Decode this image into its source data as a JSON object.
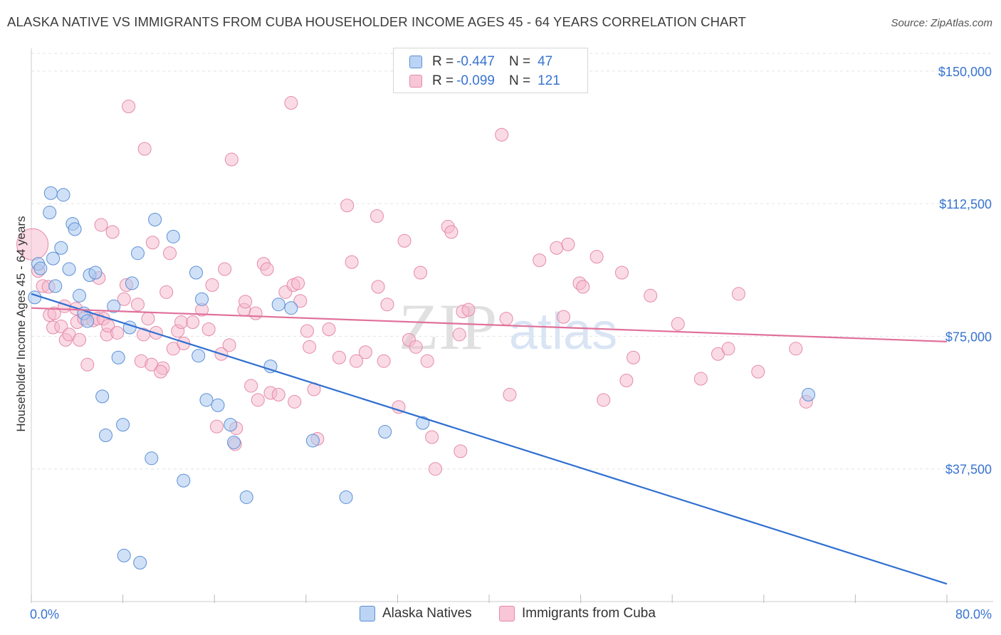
{
  "header": {
    "title": "ALASKA NATIVE VS IMMIGRANTS FROM CUBA HOUSEHOLDER INCOME AGES 45 - 64 YEARS CORRELATION CHART",
    "source": "Source: ZipAtlas.com"
  },
  "watermark": {
    "zip": "ZIP",
    "atlas": "atlas"
  },
  "legend": {
    "r_label": "R =",
    "n_label": "N =",
    "series": [
      {
        "name": "Alaska Natives",
        "r": "-0.447",
        "n": "47"
      },
      {
        "name": "Immigrants from Cuba",
        "r": "-0.099",
        "n": "121"
      }
    ]
  },
  "colors": {
    "blue_fill": "#a9c8f0",
    "blue_stroke": "#5b8fd6",
    "blue_line": "#2f6fd0",
    "pink_fill": "#f5b8cc",
    "pink_stroke": "#e58aa8",
    "pink_line": "#e0709a",
    "axis_text": "#3874d0",
    "grid": "#e3e3e3"
  },
  "chart_data": {
    "type": "scatter",
    "title": "ALASKA NATIVE VS IMMIGRANTS FROM CUBA HOUSEHOLDER INCOME AGES 45 - 64 YEARS CORRELATION CHART",
    "xlabel": "",
    "ylabel": "Householder Income Ages 45 - 64 years",
    "xlim": [
      0,
      80
    ],
    "ylim": [
      0,
      155000
    ],
    "x_tick_labels": [
      "0.0%",
      "80.0%"
    ],
    "y_ticks": [
      {
        "value": 37500,
        "label": "$37,500"
      },
      {
        "value": 75000,
        "label": "$75,000"
      },
      {
        "value": 112500,
        "label": "$112,500"
      },
      {
        "value": 150000,
        "label": "$150,000"
      }
    ],
    "grid": true,
    "series": [
      {
        "name": "Alaska Natives",
        "color": "blue",
        "trend": {
          "x": [
            0,
            80
          ],
          "y": [
            87000,
            5000
          ]
        },
        "points": [
          [
            0.6,
            95.5
          ],
          [
            0.8,
            94.2
          ],
          [
            1.6,
            110.0
          ],
          [
            1.7,
            115.5
          ],
          [
            1.9,
            97.0
          ],
          [
            2.1,
            89.2
          ],
          [
            2.6,
            100.0
          ],
          [
            2.8,
            115.0
          ],
          [
            3.3,
            94.0
          ],
          [
            3.6,
            106.8
          ],
          [
            3.8,
            105.3
          ],
          [
            4.2,
            86.5
          ],
          [
            4.6,
            81.5
          ],
          [
            4.9,
            79.3
          ],
          [
            5.1,
            92.3
          ],
          [
            5.6,
            93.0
          ],
          [
            6.2,
            58.0
          ],
          [
            6.5,
            47.0
          ],
          [
            7.2,
            83.5
          ],
          [
            7.6,
            69.0
          ],
          [
            8.0,
            50.0
          ],
          [
            8.1,
            13.0
          ],
          [
            8.6,
            77.5
          ],
          [
            8.8,
            90.0
          ],
          [
            9.3,
            98.5
          ],
          [
            9.5,
            11.0
          ],
          [
            10.5,
            40.5
          ],
          [
            10.8,
            108.0
          ],
          [
            12.4,
            103.2
          ],
          [
            13.3,
            34.2
          ],
          [
            14.4,
            93.0
          ],
          [
            14.6,
            69.5
          ],
          [
            14.9,
            85.5
          ],
          [
            15.3,
            57.0
          ],
          [
            16.3,
            55.5
          ],
          [
            17.4,
            50.0
          ],
          [
            17.7,
            45.0
          ],
          [
            18.8,
            29.5
          ],
          [
            20.9,
            66.5
          ],
          [
            21.6,
            84.0
          ],
          [
            22.7,
            83.0
          ],
          [
            24.6,
            45.5
          ],
          [
            27.5,
            29.5
          ],
          [
            30.9,
            48.0
          ],
          [
            34.2,
            50.5
          ],
          [
            67.9,
            58.5
          ],
          [
            0.3,
            86.0
          ]
        ]
      },
      {
        "name": "Immigrants from Cuba",
        "color": "pink",
        "trend": {
          "x": [
            0,
            80
          ],
          "y": [
            83000,
            73500
          ]
        },
        "points": [
          [
            0.1,
            101.0
          ],
          [
            0.6,
            93.5
          ],
          [
            1.0,
            89.2
          ],
          [
            1.5,
            89.0
          ],
          [
            1.6,
            81.0
          ],
          [
            1.9,
            77.5
          ],
          [
            2.0,
            81.5
          ],
          [
            2.6,
            77.8
          ],
          [
            2.9,
            83.5
          ],
          [
            3.0,
            74.0
          ],
          [
            3.3,
            75.5
          ],
          [
            3.9,
            82.8
          ],
          [
            4.0,
            79.0
          ],
          [
            4.2,
            74.0
          ],
          [
            4.6,
            80.0
          ],
          [
            4.9,
            67.0
          ],
          [
            5.4,
            79.5
          ],
          [
            5.8,
            80.0
          ],
          [
            6.1,
            106.5
          ],
          [
            6.3,
            80.0
          ],
          [
            6.6,
            75.5
          ],
          [
            6.7,
            78.0
          ],
          [
            7.1,
            104.5
          ],
          [
            7.5,
            76.0
          ],
          [
            8.1,
            85.5
          ],
          [
            8.3,
            89.5
          ],
          [
            8.5,
            140.0
          ],
          [
            9.3,
            84.0
          ],
          [
            9.6,
            68.0
          ],
          [
            9.9,
            128.0
          ],
          [
            10.2,
            80.0
          ],
          [
            10.5,
            67.0
          ],
          [
            10.6,
            101.5
          ],
          [
            10.9,
            76.0
          ],
          [
            11.5,
            66.0
          ],
          [
            11.8,
            87.5
          ],
          [
            12.1,
            98.5
          ],
          [
            12.4,
            71.5
          ],
          [
            12.8,
            76.5
          ],
          [
            13.1,
            79.0
          ],
          [
            13.3,
            73.0
          ],
          [
            14.9,
            82.5
          ],
          [
            15.5,
            77.0
          ],
          [
            15.8,
            89.5
          ],
          [
            16.2,
            49.5
          ],
          [
            16.6,
            70.0
          ],
          [
            16.9,
            94.0
          ],
          [
            17.3,
            72.5
          ],
          [
            17.5,
            125.0
          ],
          [
            17.8,
            44.5
          ],
          [
            17.9,
            49.0
          ],
          [
            18.6,
            82.5
          ],
          [
            18.7,
            84.8
          ],
          [
            19.2,
            61.0
          ],
          [
            19.6,
            81.5
          ],
          [
            19.8,
            57.0
          ],
          [
            20.3,
            95.5
          ],
          [
            20.6,
            94.0
          ],
          [
            20.9,
            59.0
          ],
          [
            21.6,
            58.5
          ],
          [
            22.2,
            87.5
          ],
          [
            22.7,
            141.0
          ],
          [
            22.9,
            89.5
          ],
          [
            23.0,
            56.5
          ],
          [
            23.3,
            90.0
          ],
          [
            23.5,
            85.0
          ],
          [
            24.1,
            76.5
          ],
          [
            24.3,
            72.0
          ],
          [
            24.7,
            60.0
          ],
          [
            25.0,
            46.0
          ],
          [
            26.0,
            77.0
          ],
          [
            26.9,
            69.0
          ],
          [
            27.6,
            112.0
          ],
          [
            28.0,
            96.0
          ],
          [
            28.4,
            68.0
          ],
          [
            29.2,
            70.5
          ],
          [
            30.2,
            109.0
          ],
          [
            30.3,
            89.0
          ],
          [
            30.8,
            68.0
          ],
          [
            31.1,
            84.0
          ],
          [
            32.1,
            55.0
          ],
          [
            32.6,
            102.0
          ],
          [
            33.0,
            74.0
          ],
          [
            33.6,
            72.0
          ],
          [
            34.0,
            93.0
          ],
          [
            34.6,
            68.0
          ],
          [
            35.0,
            46.5
          ],
          [
            35.3,
            37.5
          ],
          [
            36.4,
            106.0
          ],
          [
            36.7,
            104.5
          ],
          [
            37.4,
            75.5
          ],
          [
            37.5,
            42.5
          ],
          [
            37.7,
            82.0
          ],
          [
            38.2,
            82.5
          ],
          [
            41.1,
            132.0
          ],
          [
            41.5,
            80.0
          ],
          [
            41.8,
            58.5
          ],
          [
            44.4,
            96.5
          ],
          [
            45.9,
            100.0
          ],
          [
            46.5,
            80.5
          ],
          [
            46.9,
            101.0
          ],
          [
            47.9,
            90.0
          ],
          [
            48.2,
            89.0
          ],
          [
            49.4,
            97.5
          ],
          [
            50.0,
            57.0
          ],
          [
            51.6,
            93.0
          ],
          [
            52.0,
            62.5
          ],
          [
            52.6,
            69.0
          ],
          [
            54.1,
            86.5
          ],
          [
            56.5,
            78.5
          ],
          [
            58.5,
            63.0
          ],
          [
            60.0,
            70.0
          ],
          [
            60.9,
            71.5
          ],
          [
            61.8,
            87.0
          ],
          [
            63.5,
            65.0
          ],
          [
            66.8,
            71.5
          ],
          [
            67.7,
            56.5
          ],
          [
            9.8,
            75.5
          ],
          [
            14.1,
            79.0
          ],
          [
            11.3,
            65.0
          ],
          [
            5.9,
            91.5
          ]
        ]
      }
    ]
  }
}
